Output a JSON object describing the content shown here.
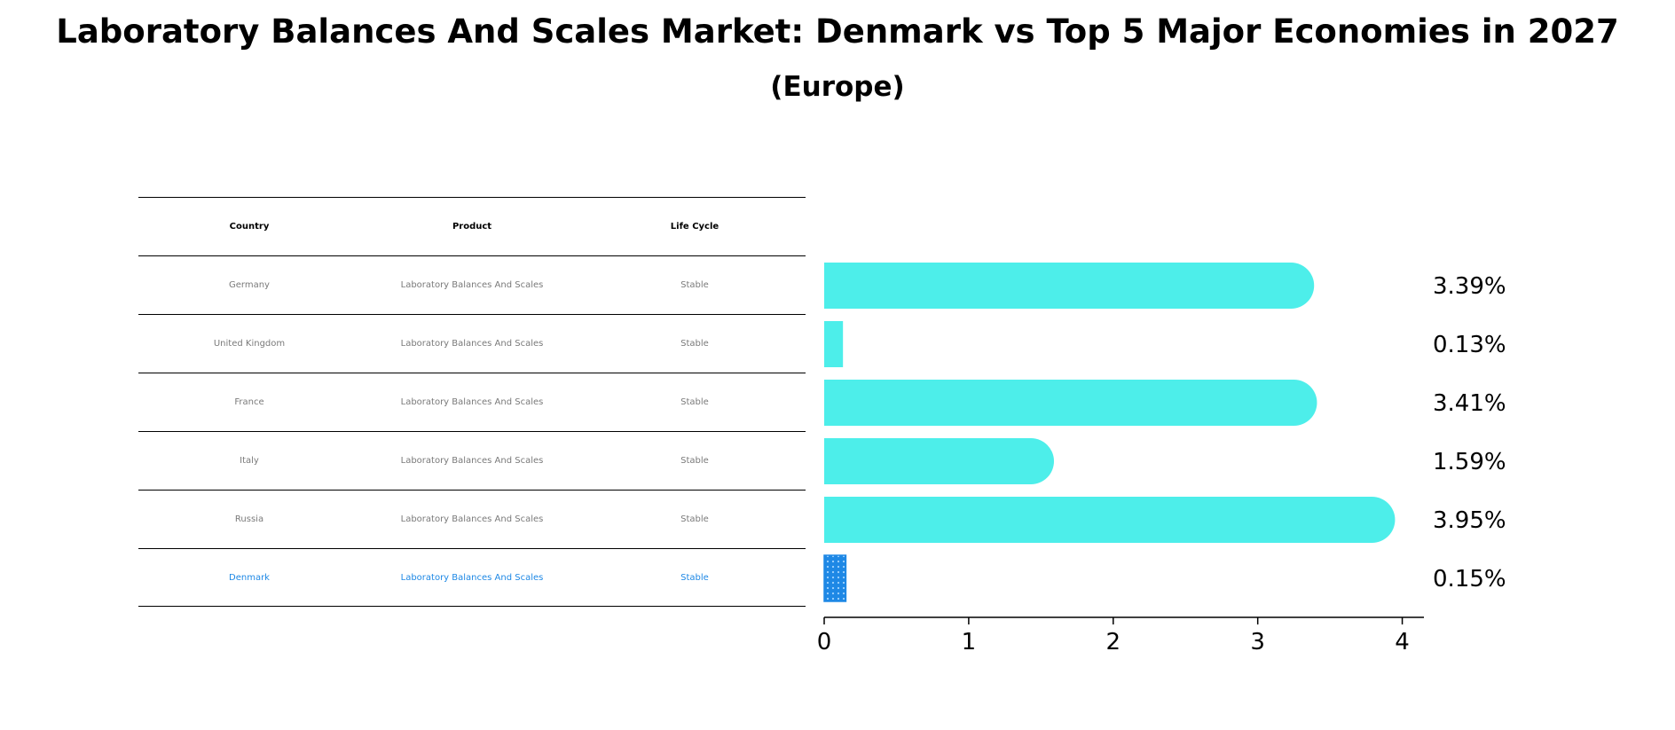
{
  "title": "Laboratory Balances And Scales Market: Denmark vs Top 5 Major Economies in 2027",
  "subtitle": "(Europe)",
  "table": {
    "headers": [
      "Country",
      "Product",
      "Life Cycle"
    ],
    "rows": [
      {
        "country": "Germany",
        "product": "Laboratory Balances And Scales",
        "life_cycle": "Stable"
      },
      {
        "country": "United Kingdom",
        "product": "Laboratory Balances And Scales",
        "life_cycle": "Stable"
      },
      {
        "country": "France",
        "product": "Laboratory Balances And Scales",
        "life_cycle": "Stable"
      },
      {
        "country": "Italy",
        "product": "Laboratory Balances And Scales",
        "life_cycle": "Stable"
      },
      {
        "country": "Russia",
        "product": "Laboratory Balances And Scales",
        "life_cycle": "Stable"
      },
      {
        "country": "Denmark",
        "product": "Laboratory Balances And Scales",
        "life_cycle": "Stable"
      }
    ]
  },
  "chart_data": {
    "type": "bar",
    "orientation": "horizontal",
    "categories": [
      "Germany",
      "United Kingdom",
      "France",
      "Italy",
      "Russia",
      "Denmark"
    ],
    "values": [
      3.39,
      0.13,
      3.41,
      1.59,
      3.95,
      0.15
    ],
    "value_labels": [
      "3.39%",
      "0.13%",
      "3.41%",
      "1.59%",
      "3.95%",
      "0.15%"
    ],
    "highlight_category": "Denmark",
    "xlim": [
      0,
      4.15
    ],
    "xticks": [
      0,
      1,
      2,
      3,
      4
    ],
    "xlabel": "",
    "ylabel": "",
    "grid": false,
    "colors": {
      "bar": "#4deeea",
      "highlight": "#1e88e5"
    }
  }
}
